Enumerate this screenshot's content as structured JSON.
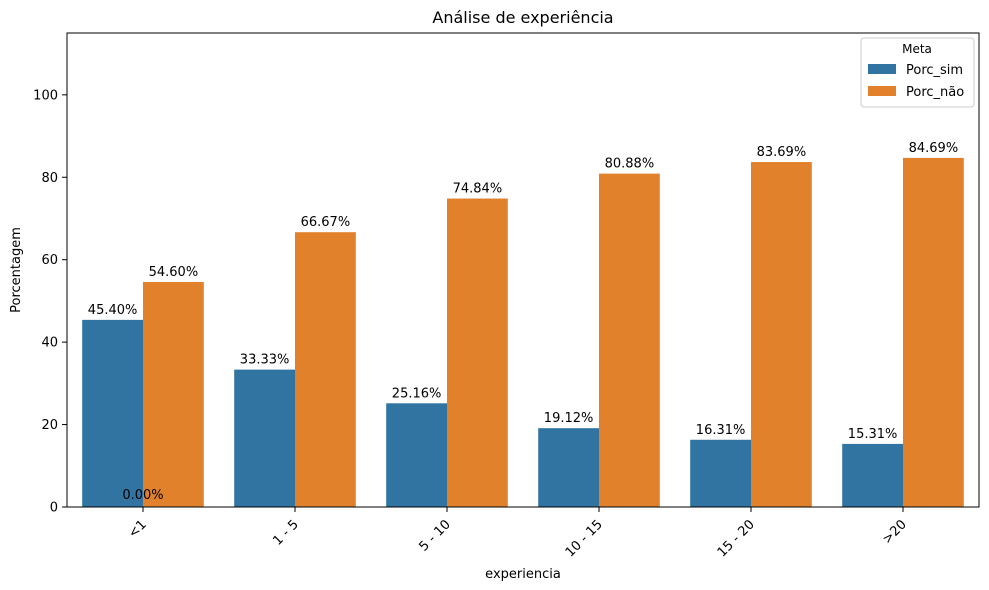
{
  "chart_data": {
    "type": "bar",
    "title": "Análise de experiência",
    "xlabel": "experiencia",
    "ylabel": "Porcentagem",
    "ylim": [
      0,
      115
    ],
    "yticks": [
      0,
      20,
      40,
      60,
      80,
      100
    ],
    "categories": [
      "<1",
      "1 - 5",
      "5 - 10",
      "10 - 15",
      "15 - 20",
      ">20"
    ],
    "series": [
      {
        "name": "Porc_sim",
        "color": "#3274a1",
        "values": [
          45.4,
          33.33,
          25.16,
          19.12,
          16.31,
          15.31
        ],
        "labels": [
          "45.40%",
          "33.33%",
          "25.16%",
          "19.12%",
          "16.31%",
          "15.31%"
        ]
      },
      {
        "name": "Porc_não",
        "color": "#e1812c",
        "values": [
          54.6,
          66.67,
          74.84,
          80.88,
          83.69,
          84.69
        ],
        "labels": [
          "54.60%",
          "66.67%",
          "74.84%",
          "80.88%",
          "83.69%",
          "84.69%"
        ]
      }
    ],
    "highlighted_labels": [
      {
        "series": "Porc_sim",
        "category": "<1",
        "color": "#ff0000"
      },
      {
        "series": "Porc_não",
        "category": ">20",
        "color": "#ff0000"
      }
    ],
    "extra_annotation": {
      "text": "0.00%",
      "category": "<1"
    },
    "legend": {
      "title": "Meta",
      "placement": "top-right"
    },
    "grid": false
  }
}
